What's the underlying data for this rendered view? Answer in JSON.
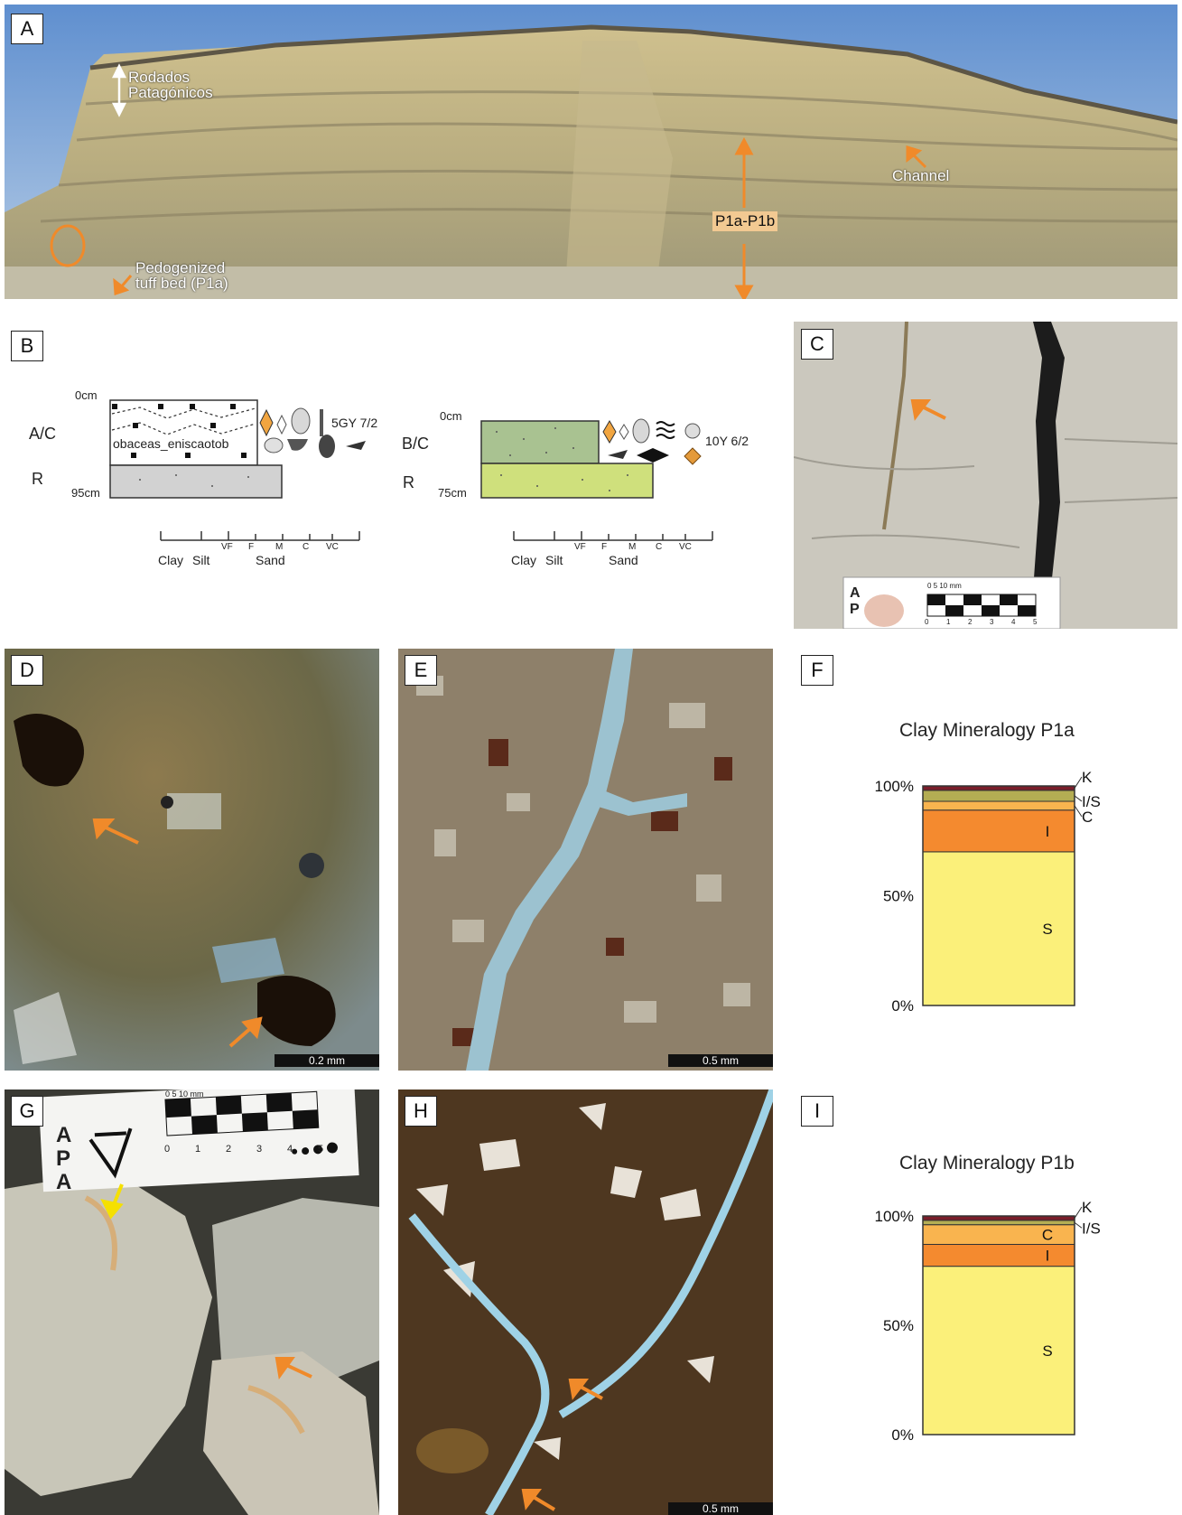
{
  "panels": {
    "A": {
      "letter": "A",
      "labels": {
        "rodados": "Rodados\nPatagónicos",
        "channel": "Channel",
        "p1ab": "P1a-P1b",
        "pedogenized": "Pedogenized\ntuff bed (P1a)"
      }
    },
    "B": {
      "letter": "B",
      "profile1": {
        "top": "0cm",
        "bottom": "95cm",
        "horizon_top": "A/C",
        "horizon_bottom": "R",
        "color": "5GY 7/2",
        "text_overlay": "obaceas_eniscaotob"
      },
      "profile2": {
        "top": "0cm",
        "bottom": "75cm",
        "horizon_top": "B/C",
        "horizon_bottom": "R",
        "color": "10Y 6/2"
      },
      "grain_axis": {
        "small": [
          "VF",
          "F",
          "M",
          "C",
          "VC"
        ],
        "main": [
          "Clay",
          "Silt",
          "Sand"
        ]
      },
      "colors": {
        "profile2_upper": "#a9c291",
        "profile2_lower": "#cfe07c",
        "profile1_lower": "#d2d2d2"
      }
    },
    "C": {
      "letter": "C",
      "scale_ticks": [
        "0",
        "1",
        "2",
        "3",
        "4",
        "5"
      ],
      "scale_unit": "0  5  10 mm",
      "card_letters": "A\nP"
    },
    "D": {
      "letter": "D",
      "scale": "0.2 mm"
    },
    "E": {
      "letter": "E",
      "scale": "0.5 mm"
    },
    "F": {
      "letter": "F",
      "chart_data": {
        "type": "bar",
        "title": "Clay Mineralogy P1a",
        "yticks": [
          "100%",
          "50%",
          "0%"
        ],
        "ylim": [
          0,
          100
        ],
        "stack": [
          {
            "name": "S",
            "value": 70,
            "color": "#fbf07a"
          },
          {
            "name": "I",
            "value": 19,
            "color": "#f48a2f"
          },
          {
            "name": "C",
            "value": 4,
            "color": "#f9b44f"
          },
          {
            "name": "I/S",
            "value": 5,
            "color": "#b4ad53"
          },
          {
            "name": "K",
            "value": 2,
            "color": "#7a1e2a"
          }
        ]
      }
    },
    "G": {
      "letter": "G",
      "scale_ticks": [
        "0",
        "1",
        "2",
        "3",
        "4",
        "5"
      ],
      "scale_unit": "0  5  10 mm",
      "card_letters": "A\nP\nA"
    },
    "H": {
      "letter": "H",
      "scale": "0.5 mm"
    },
    "I": {
      "letter": "I",
      "chart_data": {
        "type": "bar",
        "title": "Clay Mineralogy P1b",
        "yticks": [
          "100%",
          "50%",
          "0%"
        ],
        "ylim": [
          0,
          100
        ],
        "stack": [
          {
            "name": "S",
            "value": 77,
            "color": "#fbf07a"
          },
          {
            "name": "I",
            "value": 10,
            "color": "#f48a2f"
          },
          {
            "name": "C",
            "value": 9,
            "color": "#f9b44f"
          },
          {
            "name": "I/S",
            "value": 2,
            "color": "#b4ad53"
          },
          {
            "name": "K",
            "value": 2,
            "color": "#7a1e2a"
          }
        ]
      }
    }
  }
}
